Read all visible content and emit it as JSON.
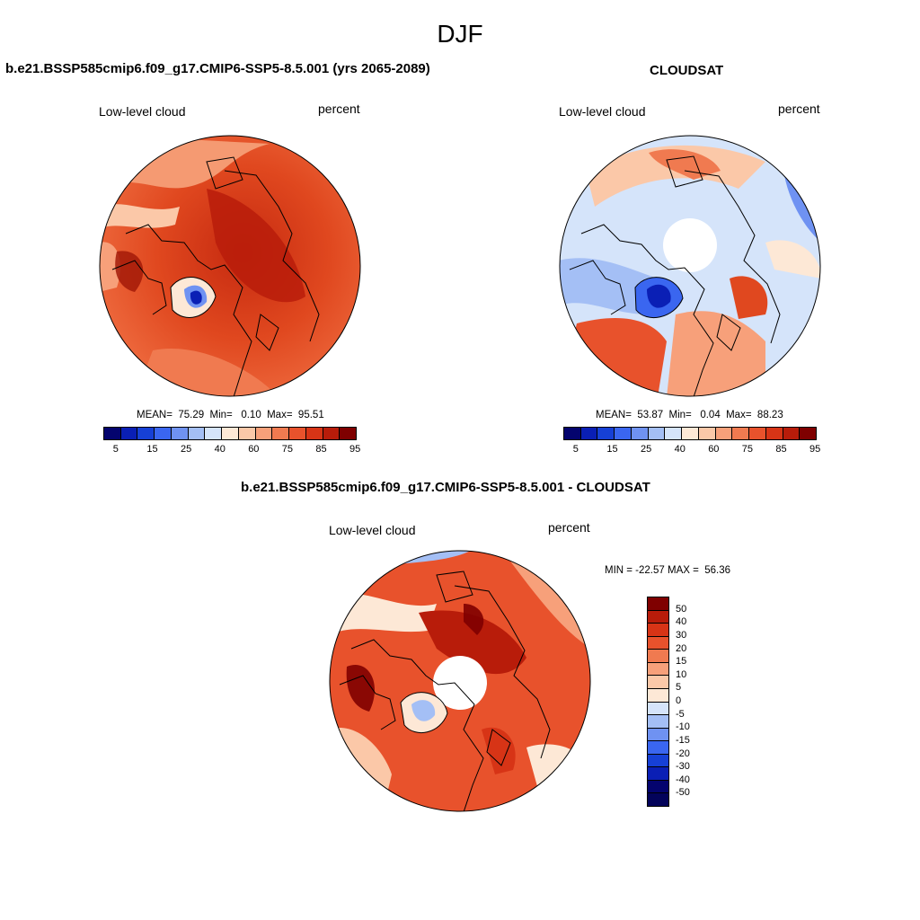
{
  "season": "DJF",
  "panels": {
    "model": {
      "title": "b.e21.BSSP585cmip6.f09_g17.CMIP6-SSP5-8.5.001 (yrs 2065-2089)",
      "left_label": "Low-level cloud",
      "right_label": "percent",
      "stats": "MEAN=  75.29  Min=   0.10  Max=  95.51"
    },
    "obs": {
      "title": "CLOUDSAT",
      "left_label": "Low-level cloud",
      "right_label": "percent",
      "stats": "MEAN=  53.87  Min=   0.04  Max=  88.23"
    },
    "diff": {
      "title": "b.e21.BSSP585cmip6.f09_g17.CMIP6-SSP5-8.5.001 - CLOUDSAT",
      "left_label": "Low-level cloud",
      "right_label": "percent",
      "stats": "MIN = -22.57 MAX =  56.36"
    }
  },
  "colorbar_abs": {
    "ticks": [
      "5",
      "15",
      "25",
      "40",
      "60",
      "75",
      "85",
      "95"
    ],
    "colors": [
      "#04046e",
      "#0a1fb5",
      "#1640d6",
      "#3a66f0",
      "#6f92f2",
      "#a4bff5",
      "#d5e4fa",
      "#fde8d6",
      "#fbc8a8",
      "#f7a07a",
      "#f07a50",
      "#e8522c",
      "#d73416",
      "#b81c0a",
      "#7f0000"
    ]
  },
  "colorbar_diff": {
    "ticks": [
      "50",
      "40",
      "30",
      "20",
      "15",
      "10",
      "5",
      "0",
      "-5",
      "-10",
      "-15",
      "-20",
      "-30",
      "-40",
      "-50"
    ],
    "colors": [
      "#7f0000",
      "#b81c0a",
      "#d73416",
      "#e8522c",
      "#f07a50",
      "#f7a07a",
      "#fbc8a8",
      "#fde8d6",
      "#d5e4fa",
      "#a4bff5",
      "#6f92f2",
      "#3a66f0",
      "#1640d6",
      "#0a1fb5",
      "#04046e",
      "#03035a"
    ]
  }
}
